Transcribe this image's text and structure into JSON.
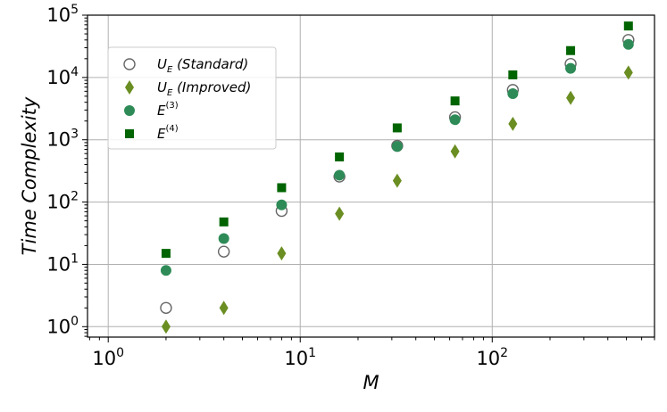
{
  "chart_data": {
    "type": "scatter",
    "xscale": "log",
    "yscale": "log",
    "xlim": [
      0.78,
      700
    ],
    "ylim": [
      0.68,
      100000
    ],
    "grid": true,
    "legend_position": "upper-left",
    "xlabel": "M",
    "ylabel": "Time Complexity",
    "x_ticks": [
      {
        "base": "10",
        "exp": "0"
      },
      {
        "base": "10",
        "exp": "1"
      },
      {
        "base": "10",
        "exp": "2"
      }
    ],
    "y_ticks": [
      {
        "base": "10",
        "exp": "0"
      },
      {
        "base": "10",
        "exp": "1"
      },
      {
        "base": "10",
        "exp": "2"
      },
      {
        "base": "10",
        "exp": "3"
      },
      {
        "base": "10",
        "exp": "4"
      },
      {
        "base": "10",
        "exp": "5"
      }
    ],
    "x_tick_values": [
      1,
      10,
      100
    ],
    "y_tick_values": [
      1,
      10,
      100,
      1000,
      10000,
      100000
    ],
    "x": [
      2,
      4,
      8,
      16,
      32,
      64,
      128,
      256,
      512
    ],
    "series": [
      {
        "key": "ue_standard",
        "legend_main": "U",
        "legend_sub": "E",
        "legend_paren": " (Standard)",
        "marker": "open-circle",
        "color": "#666666",
        "values": [
          2,
          16,
          72,
          256,
          800,
          2300,
          6300,
          16500,
          40000
        ]
      },
      {
        "key": "ue_improved",
        "legend_main": "U",
        "legend_sub": "E",
        "legend_paren": " (Improved)",
        "marker": "thin-diamond",
        "color": "#6b8e23",
        "values": [
          1,
          2,
          15,
          65,
          220,
          650,
          1800,
          4700,
          12000
        ]
      },
      {
        "key": "e3",
        "legend_main": "E",
        "legend_sup": "(3)",
        "marker": "filled-circle",
        "color": "#2e8b57",
        "values": [
          8,
          26,
          90,
          270,
          780,
          2100,
          5500,
          14000,
          34000
        ]
      },
      {
        "key": "e4",
        "legend_main": "E",
        "legend_sup": "(4)",
        "marker": "square",
        "color": "#006400",
        "values": [
          15,
          48,
          170,
          530,
          1550,
          4200,
          11000,
          27000,
          67000
        ]
      }
    ]
  }
}
